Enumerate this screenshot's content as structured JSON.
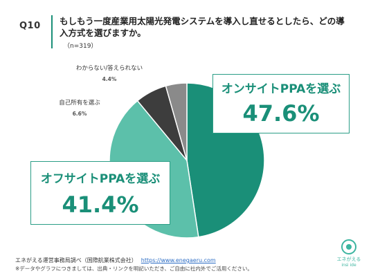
{
  "question": {
    "number": "Q10",
    "text": "もしもう一度産業用太陽光発電システムを導入し直せるとしたら、どの導入方式を選びますか。",
    "n": "（n=319）"
  },
  "chart_data": {
    "type": "pie",
    "slices": [
      {
        "label": "オンサイトPPAを選ぶ",
        "value": 47.6,
        "display": "47.6%",
        "color": "#1a8f78"
      },
      {
        "label": "オフサイトPPAを選ぶ",
        "value": 41.4,
        "display": "41.4%",
        "color": "#5cc0aa"
      },
      {
        "label": "自己所有を選ぶ",
        "value": 6.6,
        "display": "6.6%",
        "color": "#3d3d3d"
      },
      {
        "label": "わからない/答えられない",
        "value": 4.4,
        "display": "4.4%",
        "color": "#8a8a8a"
      }
    ]
  },
  "footer": {
    "source": "エネがえる運営事務局調べ（国際航業株式会社）",
    "url": "https://www.enegaeru.com",
    "note": "※データやグラフにつきましては、出典・リンクを明記いただき、ご自由に社内外でご活用ください。"
  },
  "logo": {
    "name": "エネがえる",
    "sub": "insi ide"
  }
}
